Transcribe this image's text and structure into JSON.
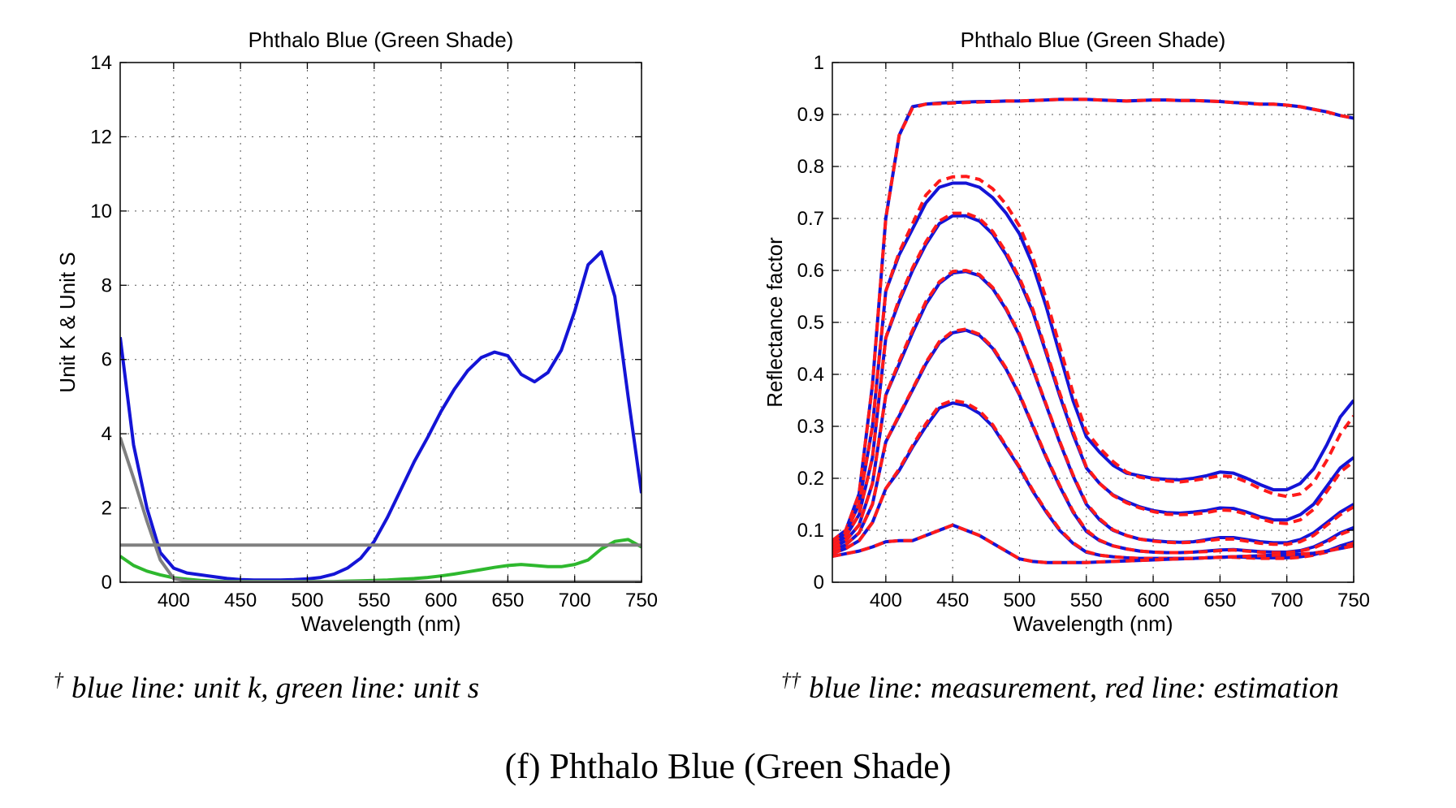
{
  "chart_data": [
    {
      "type": "line",
      "title": "Phthalo Blue (Green Shade)",
      "xlabel": "Wavelength (nm)",
      "ylabel": "Unit K & Unit S",
      "xlim": [
        360,
        750
      ],
      "ylim": [
        0,
        14
      ],
      "xticks": [
        400,
        450,
        500,
        550,
        600,
        650,
        700,
        750
      ],
      "yticks": [
        0,
        2,
        4,
        6,
        8,
        10,
        12,
        14
      ],
      "grid": true,
      "series": [
        {
          "color": "#1414d6",
          "x": [
            360,
            370,
            380,
            390,
            400,
            410,
            420,
            430,
            440,
            450,
            460,
            470,
            480,
            490,
            500,
            510,
            520,
            530,
            540,
            550,
            560,
            570,
            580,
            590,
            600,
            610,
            620,
            630,
            640,
            650,
            660,
            670,
            680,
            690,
            700,
            710,
            720,
            730,
            740,
            750
          ],
          "y": [
            6.6,
            3.7,
            2.0,
            0.8,
            0.38,
            0.25,
            0.2,
            0.15,
            0.1,
            0.07,
            0.06,
            0.06,
            0.06,
            0.07,
            0.09,
            0.13,
            0.22,
            0.38,
            0.65,
            1.1,
            1.75,
            2.5,
            3.25,
            3.9,
            4.6,
            5.2,
            5.7,
            6.05,
            6.2,
            6.1,
            5.6,
            5.4,
            5.65,
            6.25,
            7.3,
            8.55,
            8.9,
            7.7,
            5.0,
            2.4
          ]
        },
        {
          "color": "#2eb82e",
          "x": [
            360,
            370,
            380,
            390,
            400,
            410,
            420,
            430,
            440,
            450,
            460,
            470,
            480,
            490,
            500,
            510,
            520,
            530,
            540,
            550,
            560,
            570,
            580,
            590,
            600,
            610,
            620,
            630,
            640,
            650,
            660,
            670,
            680,
            690,
            700,
            710,
            720,
            730,
            740,
            750
          ],
          "y": [
            0.7,
            0.45,
            0.3,
            0.2,
            0.12,
            0.08,
            0.05,
            0.03,
            0.02,
            0.02,
            0.02,
            0.02,
            0.02,
            0.02,
            0.02,
            0.02,
            0.02,
            0.03,
            0.04,
            0.05,
            0.06,
            0.08,
            0.1,
            0.13,
            0.17,
            0.22,
            0.28,
            0.34,
            0.4,
            0.45,
            0.48,
            0.45,
            0.42,
            0.42,
            0.48,
            0.6,
            0.9,
            1.1,
            1.15,
            0.95
          ]
        },
        {
          "color": "#808080",
          "x": [
            360,
            370,
            380,
            390,
            400,
            410,
            420,
            430,
            440,
            450,
            460,
            470,
            480,
            490,
            500,
            510,
            520,
            530,
            540,
            550,
            560,
            570,
            580,
            590,
            600,
            610,
            620,
            630,
            640,
            650,
            660,
            670,
            680,
            690,
            700,
            710,
            720,
            730,
            740,
            750
          ],
          "y": [
            3.9,
            2.8,
            1.65,
            0.6,
            0.1,
            0.03,
            0.02,
            0.01,
            0.01,
            0.01,
            0.01,
            0.01,
            0.01,
            0.01,
            0.01,
            0.01,
            0.01,
            0.01,
            0.01,
            0.01,
            0.01,
            0.01,
            0.01,
            0.01,
            0.01,
            0.01,
            0.01,
            0.01,
            0.01,
            0.01,
            0.01,
            0.01,
            0.01,
            0.01,
            0.01,
            0.01,
            0.01,
            0.01,
            0.01,
            0.01
          ]
        },
        {
          "color": "#808080",
          "x": [
            360,
            750
          ],
          "y": [
            1.0,
            1.0
          ]
        }
      ]
    },
    {
      "type": "line",
      "title": "Phthalo Blue (Green Shade)",
      "xlabel": "Wavelength (nm)",
      "ylabel": "Reflectance factor",
      "xlim": [
        360,
        750
      ],
      "ylim": [
        0,
        1
      ],
      "xticks": [
        400,
        450,
        500,
        550,
        600,
        650,
        700,
        750
      ],
      "yticks": [
        0,
        0.1,
        0.2,
        0.3,
        0.4,
        0.5,
        0.6,
        0.7,
        0.8,
        0.9,
        1
      ],
      "grid": true,
      "x": [
        360,
        370,
        380,
        390,
        400,
        410,
        420,
        430,
        440,
        450,
        460,
        470,
        480,
        490,
        500,
        510,
        520,
        530,
        540,
        550,
        560,
        570,
        580,
        590,
        600,
        610,
        620,
        630,
        640,
        650,
        660,
        670,
        680,
        690,
        700,
        710,
        720,
        730,
        740,
        750
      ],
      "measurement_color": "#1414d6",
      "estimation_color": "#ff1a1a",
      "series": [
        {
          "measurement": [
            0.08,
            0.1,
            0.17,
            0.38,
            0.7,
            0.86,
            0.915,
            0.92,
            0.922,
            0.923,
            0.924,
            0.925,
            0.925,
            0.926,
            0.926,
            0.927,
            0.928,
            0.929,
            0.929,
            0.929,
            0.928,
            0.927,
            0.926,
            0.927,
            0.928,
            0.928,
            0.927,
            0.927,
            0.926,
            0.925,
            0.923,
            0.922,
            0.92,
            0.92,
            0.918,
            0.915,
            0.91,
            0.905,
            0.898,
            0.893
          ],
          "estimation": [
            0.08,
            0.1,
            0.17,
            0.38,
            0.7,
            0.86,
            0.913,
            0.92,
            0.921,
            0.922,
            0.923,
            0.924,
            0.925,
            0.926,
            0.926,
            0.927,
            0.928,
            0.929,
            0.929,
            0.929,
            0.928,
            0.927,
            0.926,
            0.927,
            0.928,
            0.928,
            0.927,
            0.927,
            0.926,
            0.925,
            0.923,
            0.921,
            0.92,
            0.92,
            0.918,
            0.915,
            0.91,
            0.905,
            0.898,
            0.893
          ]
        },
        {
          "measurement": [
            0.075,
            0.095,
            0.15,
            0.3,
            0.56,
            0.63,
            0.68,
            0.73,
            0.76,
            0.768,
            0.768,
            0.76,
            0.74,
            0.71,
            0.67,
            0.61,
            0.53,
            0.44,
            0.35,
            0.28,
            0.25,
            0.225,
            0.21,
            0.205,
            0.2,
            0.198,
            0.197,
            0.2,
            0.205,
            0.212,
            0.21,
            0.2,
            0.188,
            0.178,
            0.178,
            0.19,
            0.218,
            0.265,
            0.318,
            0.35
          ],
          "estimation": [
            0.075,
            0.095,
            0.15,
            0.3,
            0.56,
            0.635,
            0.69,
            0.745,
            0.772,
            0.78,
            0.781,
            0.775,
            0.757,
            0.727,
            0.685,
            0.625,
            0.545,
            0.455,
            0.365,
            0.29,
            0.258,
            0.232,
            0.212,
            0.202,
            0.198,
            0.195,
            0.193,
            0.196,
            0.2,
            0.205,
            0.203,
            0.193,
            0.18,
            0.17,
            0.165,
            0.17,
            0.192,
            0.235,
            0.285,
            0.32
          ]
        },
        {
          "measurement": [
            0.07,
            0.088,
            0.13,
            0.24,
            0.47,
            0.54,
            0.6,
            0.65,
            0.69,
            0.705,
            0.705,
            0.695,
            0.67,
            0.63,
            0.58,
            0.52,
            0.44,
            0.36,
            0.285,
            0.22,
            0.19,
            0.168,
            0.155,
            0.145,
            0.138,
            0.134,
            0.133,
            0.135,
            0.138,
            0.143,
            0.142,
            0.135,
            0.126,
            0.12,
            0.12,
            0.13,
            0.15,
            0.185,
            0.22,
            0.24
          ],
          "estimation": [
            0.07,
            0.088,
            0.13,
            0.24,
            0.47,
            0.545,
            0.605,
            0.655,
            0.695,
            0.71,
            0.71,
            0.7,
            0.675,
            0.635,
            0.585,
            0.525,
            0.445,
            0.365,
            0.29,
            0.222,
            0.19,
            0.167,
            0.153,
            0.143,
            0.136,
            0.131,
            0.13,
            0.131,
            0.134,
            0.139,
            0.138,
            0.131,
            0.122,
            0.115,
            0.113,
            0.12,
            0.14,
            0.175,
            0.212,
            0.232
          ]
        },
        {
          "measurement": [
            0.065,
            0.08,
            0.11,
            0.19,
            0.36,
            0.42,
            0.48,
            0.535,
            0.575,
            0.595,
            0.598,
            0.59,
            0.565,
            0.525,
            0.475,
            0.41,
            0.34,
            0.27,
            0.205,
            0.15,
            0.12,
            0.1,
            0.09,
            0.083,
            0.08,
            0.078,
            0.077,
            0.078,
            0.082,
            0.086,
            0.086,
            0.082,
            0.078,
            0.076,
            0.076,
            0.082,
            0.095,
            0.115,
            0.135,
            0.15
          ],
          "estimation": [
            0.065,
            0.08,
            0.11,
            0.19,
            0.36,
            0.425,
            0.485,
            0.54,
            0.578,
            0.598,
            0.6,
            0.592,
            0.567,
            0.527,
            0.477,
            0.412,
            0.342,
            0.272,
            0.207,
            0.152,
            0.122,
            0.101,
            0.09,
            0.083,
            0.079,
            0.077,
            0.076,
            0.077,
            0.08,
            0.083,
            0.083,
            0.079,
            0.075,
            0.073,
            0.073,
            0.078,
            0.09,
            0.11,
            0.13,
            0.145
          ]
        },
        {
          "measurement": [
            0.06,
            0.072,
            0.095,
            0.15,
            0.27,
            0.32,
            0.37,
            0.42,
            0.46,
            0.48,
            0.485,
            0.475,
            0.45,
            0.41,
            0.36,
            0.3,
            0.24,
            0.185,
            0.135,
            0.098,
            0.08,
            0.07,
            0.064,
            0.06,
            0.058,
            0.057,
            0.057,
            0.058,
            0.06,
            0.062,
            0.063,
            0.061,
            0.059,
            0.058,
            0.058,
            0.061,
            0.068,
            0.08,
            0.095,
            0.105
          ],
          "estimation": [
            0.06,
            0.072,
            0.095,
            0.15,
            0.27,
            0.322,
            0.372,
            0.423,
            0.463,
            0.483,
            0.487,
            0.477,
            0.452,
            0.412,
            0.362,
            0.302,
            0.242,
            0.187,
            0.137,
            0.1,
            0.081,
            0.07,
            0.064,
            0.06,
            0.058,
            0.057,
            0.057,
            0.058,
            0.059,
            0.061,
            0.062,
            0.06,
            0.058,
            0.057,
            0.057,
            0.06,
            0.066,
            0.077,
            0.092,
            0.102
          ]
        },
        {
          "measurement": [
            0.055,
            0.065,
            0.08,
            0.115,
            0.18,
            0.215,
            0.26,
            0.3,
            0.335,
            0.345,
            0.34,
            0.325,
            0.3,
            0.26,
            0.22,
            0.175,
            0.135,
            0.1,
            0.075,
            0.058,
            0.052,
            0.049,
            0.047,
            0.046,
            0.046,
            0.046,
            0.046,
            0.046,
            0.047,
            0.048,
            0.049,
            0.048,
            0.047,
            0.047,
            0.047,
            0.049,
            0.053,
            0.06,
            0.07,
            0.078
          ],
          "estimation": [
            0.055,
            0.065,
            0.08,
            0.115,
            0.18,
            0.218,
            0.263,
            0.305,
            0.34,
            0.35,
            0.345,
            0.33,
            0.303,
            0.262,
            0.222,
            0.177,
            0.137,
            0.102,
            0.076,
            0.059,
            0.052,
            0.049,
            0.047,
            0.046,
            0.046,
            0.046,
            0.046,
            0.046,
            0.047,
            0.048,
            0.048,
            0.047,
            0.046,
            0.046,
            0.046,
            0.048,
            0.052,
            0.058,
            0.067,
            0.075
          ]
        },
        {
          "measurement": [
            0.05,
            0.055,
            0.06,
            0.068,
            0.078,
            0.08,
            0.08,
            0.09,
            0.1,
            0.11,
            0.1,
            0.09,
            0.075,
            0.06,
            0.045,
            0.04,
            0.038,
            0.038,
            0.038,
            0.038,
            0.039,
            0.04,
            0.041,
            0.042,
            0.043,
            0.044,
            0.045,
            0.046,
            0.047,
            0.048,
            0.049,
            0.05,
            0.051,
            0.052,
            0.053,
            0.054,
            0.056,
            0.06,
            0.065,
            0.07
          ],
          "estimation": [
            0.05,
            0.055,
            0.06,
            0.068,
            0.078,
            0.08,
            0.08,
            0.09,
            0.1,
            0.11,
            0.1,
            0.09,
            0.075,
            0.06,
            0.045,
            0.04,
            0.038,
            0.038,
            0.038,
            0.038,
            0.039,
            0.04,
            0.041,
            0.042,
            0.043,
            0.044,
            0.045,
            0.046,
            0.047,
            0.048,
            0.049,
            0.05,
            0.051,
            0.052,
            0.053,
            0.054,
            0.056,
            0.06,
            0.065,
            0.07
          ]
        }
      ]
    }
  ],
  "notes": {
    "left_mark": "†",
    "left_text": "blue line: unit k, green line: unit s",
    "right_mark": "††",
    "right_text": "blue line: measurement, red line: estimation"
  },
  "caption": "(f) Phthalo Blue (Green Shade)"
}
